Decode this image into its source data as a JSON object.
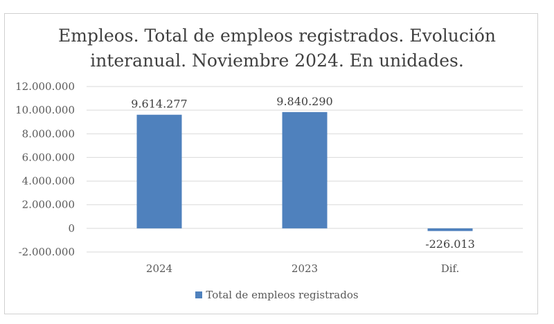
{
  "chart_data": {
    "type": "bar",
    "title": "Empleos. Total de empleos registrados. Evolución interanual. Noviembre 2024. En unidades.",
    "title_lines": [
      "Empleos. Total de empleos registrados. Evolución",
      "interanual. Noviembre 2024. En unidades."
    ],
    "categories": [
      "2024",
      "2023",
      "Dif."
    ],
    "series": [
      {
        "name": "Total de empleos registrados",
        "values": [
          9614277,
          9840290,
          -226013
        ],
        "color": "#4f81bd"
      }
    ],
    "data_labels": [
      "9.614.277",
      "9.840.290",
      "-226.013"
    ],
    "ylim": [
      -2000000,
      12000000
    ],
    "yticks": [
      -2000000,
      0,
      2000000,
      4000000,
      6000000,
      8000000,
      10000000,
      12000000
    ],
    "ytick_labels": [
      "-2.000.000",
      "0",
      "2.000.000",
      "4.000.000",
      "6.000.000",
      "8.000.000",
      "10.000.000",
      "12.000.000"
    ],
    "grid": true,
    "legend": "bottom",
    "xlabel": "",
    "ylabel": ""
  }
}
